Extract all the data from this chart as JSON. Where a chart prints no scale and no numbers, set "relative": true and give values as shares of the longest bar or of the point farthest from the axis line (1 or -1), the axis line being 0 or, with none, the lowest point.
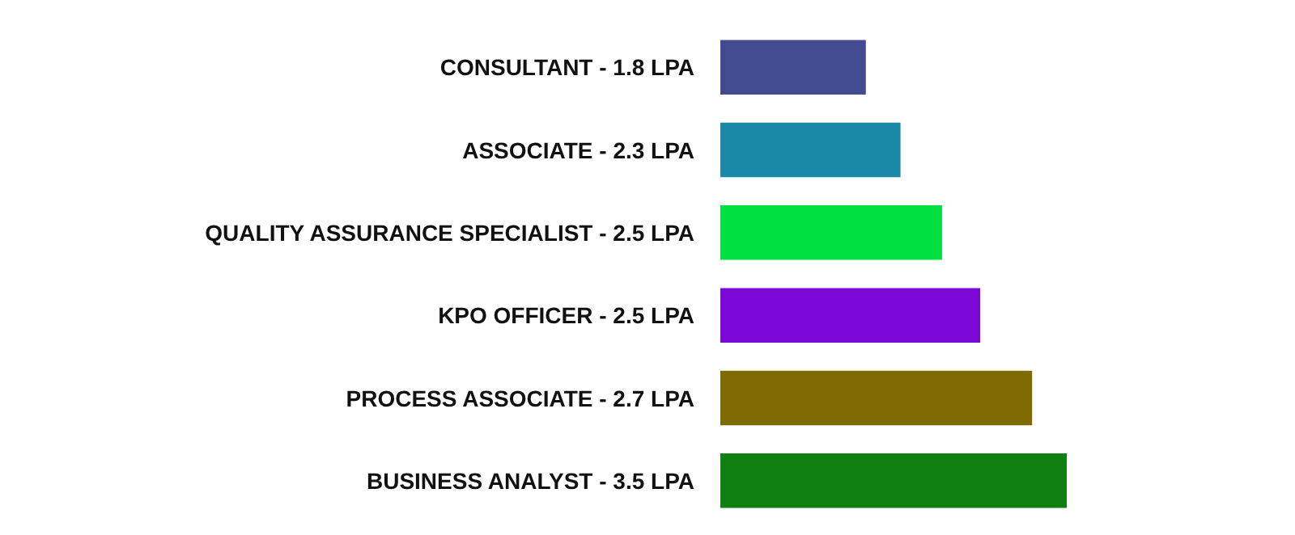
{
  "chart_data": {
    "type": "bar",
    "orientation": "horizontal",
    "relative": true,
    "categories": [
      "CONSULTANT - 1.8 LPA",
      "ASSOCIATE - 2.3 LPA",
      "QUALITY ASSURANCE SPECIALIST - 2.5 LPA",
      "KPO OFFICER - 2.5 LPA",
      "PROCESS ASSOCIATE - 2.7 LPA",
      "BUSINESS ANALYST - 3.5 LPA"
    ],
    "values": [
      0.42,
      0.52,
      0.64,
      0.75,
      0.9,
      1
    ],
    "colors": [
      "#434a8f",
      "#1a89a8",
      "#00e040",
      "#7c08d8",
      "#7f6a00",
      "#0e7f10"
    ]
  }
}
